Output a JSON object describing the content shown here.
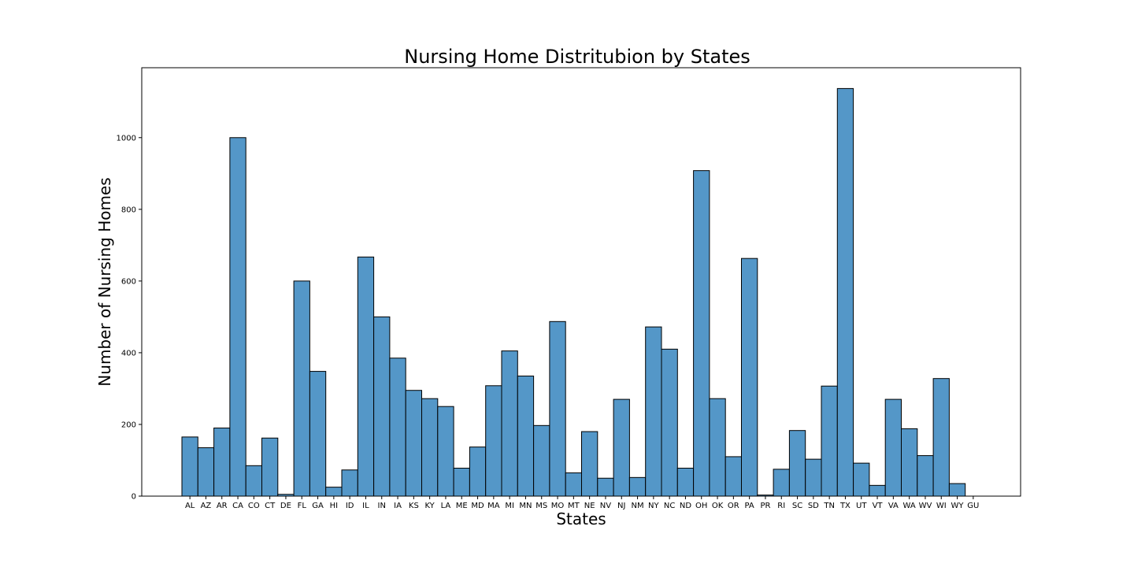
{
  "chart_data": {
    "type": "bar",
    "title": "Nursing Home Distritubion by States",
    "xlabel": "States",
    "ylabel": "Number of Nursing Homes",
    "bar_color": "#5497c8",
    "edge_color": "#000000",
    "ylim": [
      0,
      1195
    ],
    "yticks": [
      0,
      200,
      400,
      600,
      800,
      1000
    ],
    "grid": false,
    "categories": [
      "AL",
      "AZ",
      "AR",
      "CA",
      "CO",
      "CT",
      "DE",
      "FL",
      "GA",
      "HI",
      "ID",
      "IL",
      "IN",
      "IA",
      "KS",
      "KY",
      "LA",
      "ME",
      "MD",
      "MA",
      "MI",
      "MN",
      "MS",
      "MO",
      "MT",
      "NE",
      "NV",
      "NJ",
      "NM",
      "NY",
      "NC",
      "ND",
      "OH",
      "OK",
      "OR",
      "PA",
      "PR",
      "RI",
      "SC",
      "SD",
      "TN",
      "TX",
      "UT",
      "VT",
      "VA",
      "WA",
      "WV",
      "WI",
      "WY",
      "GU"
    ],
    "values": [
      165,
      135,
      190,
      1000,
      85,
      162,
      5,
      600,
      348,
      25,
      73,
      667,
      500,
      385,
      295,
      272,
      250,
      78,
      137,
      308,
      405,
      335,
      197,
      487,
      65,
      180,
      50,
      270,
      52,
      472,
      410,
      78,
      908,
      272,
      110,
      663,
      3,
      75,
      183,
      103,
      307,
      1137,
      92,
      30,
      270,
      188,
      113,
      328,
      35,
      0
    ]
  }
}
